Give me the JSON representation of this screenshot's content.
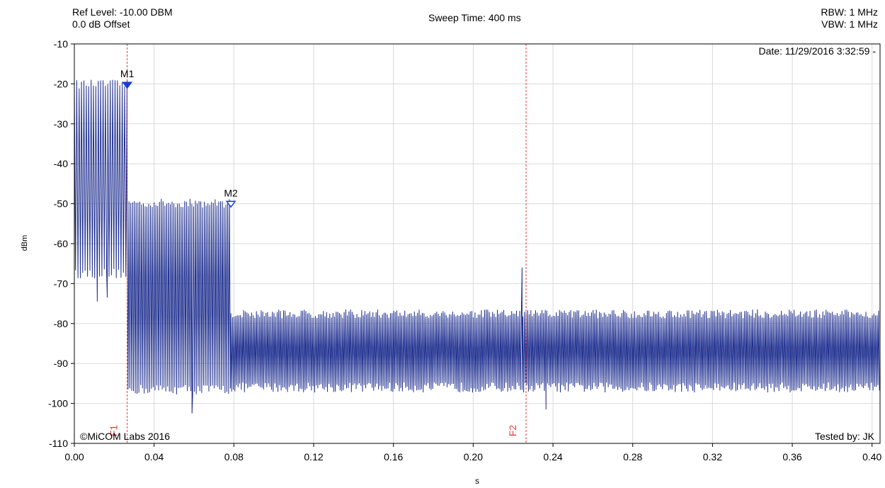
{
  "header": {
    "ref_level": "Ref Level: -10.00 DBM",
    "offset": "0.0 dB Offset",
    "sweep_time": "Sweep Time: 400 ms",
    "rbw": "RBW: 1 MHz",
    "vbw": "VBW: 1 MHz"
  },
  "annotations": {
    "date": "Date: 11/29/2016 3:32:59 -",
    "copyright": "©MiCOM Labs 2016",
    "tested_by": "Tested by: JK"
  },
  "colors": {
    "trace": "#1f2f8f",
    "marker": "#1a3cd6",
    "limit_line": "#e8383a",
    "grid": "#d9d9d9",
    "axis": "#000000"
  },
  "chart_data": {
    "type": "line",
    "xlabel": "s",
    "ylabel": "dBm",
    "xlim": [
      0.0,
      0.404
    ],
    "ylim": [
      -110,
      -10
    ],
    "x_ticks": [
      "0.00",
      "0.04",
      "0.08",
      "0.12",
      "0.16",
      "0.20",
      "0.24",
      "0.28",
      "0.32",
      "0.36",
      "0.40"
    ],
    "y_ticks": [
      "-10",
      "-20",
      "-30",
      "-40",
      "-50",
      "-60",
      "-70",
      "-80",
      "-90",
      "-100",
      "-110"
    ],
    "grid": true,
    "segments": [
      {
        "x_start": 0.0,
        "x_end": 0.0265,
        "peak_dbm": -20.5,
        "trough_dbm": -67.5,
        "pulse_period_s": 0.0012
      },
      {
        "x_start": 0.0265,
        "x_end": 0.0785,
        "peak_dbm": -50.3,
        "trough_dbm": -96.5,
        "pulse_period_s": 0.0009
      },
      {
        "x_start": 0.0785,
        "x_end": 0.404,
        "peak_dbm": -78.0,
        "trough_dbm": -96.0,
        "pulse_period_s": 0.0008
      }
    ],
    "spikes": [
      {
        "x": 0.2245,
        "y": -66.0
      },
      {
        "x": 0.059,
        "y": -102.5
      },
      {
        "x": 0.2365,
        "y": -101.5
      },
      {
        "x": 0.0115,
        "y": -74.5
      },
      {
        "x": 0.0165,
        "y": -73.5
      }
    ],
    "markers": [
      {
        "label": "M1",
        "x": 0.0265,
        "y": -20.5,
        "filled": true
      },
      {
        "label": "M2",
        "x": 0.0785,
        "y": -50.3,
        "filled": false
      }
    ],
    "vertical_lines": [
      {
        "label": "F1",
        "x": 0.0265
      },
      {
        "label": "F2",
        "x": 0.2265
      }
    ]
  }
}
